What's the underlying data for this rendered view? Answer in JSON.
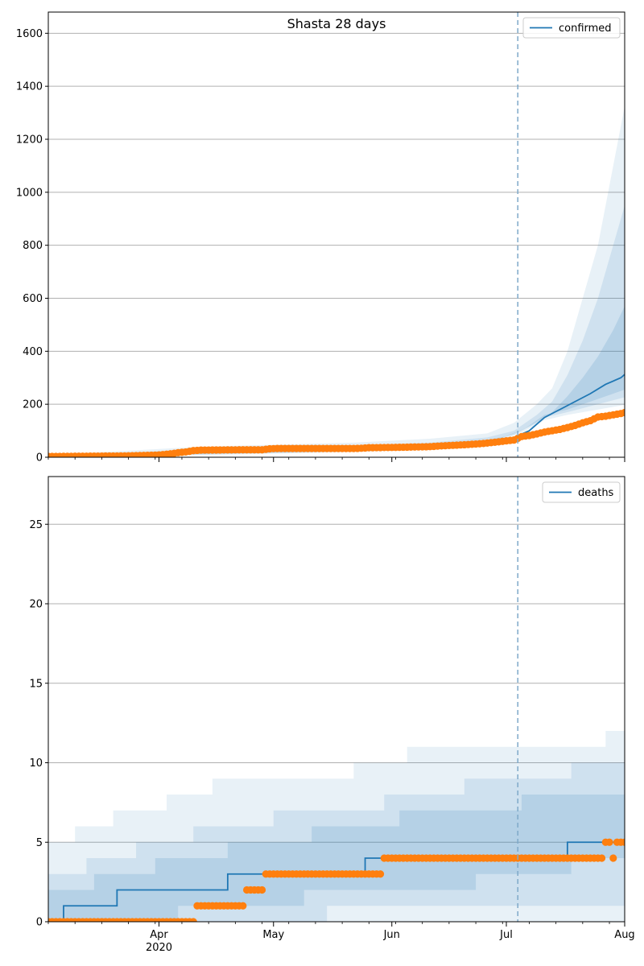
{
  "chart_data": [
    {
      "type": "line",
      "title": "Shasta 28 days",
      "series": [
        {
          "name": "confirmed",
          "color": "#1f77b4"
        }
      ],
      "observed_color": "#ff7f0e",
      "band_color": "#1f77b4",
      "xlim": [
        "2020-03-03",
        "2020-08-01"
      ],
      "ylim": [
        0,
        1680
      ],
      "yticks": [
        0,
        200,
        400,
        600,
        800,
        1000,
        1200,
        1400,
        1600
      ],
      "forecast_start": "2020-07-04",
      "grid": "horizontal",
      "legend_position": "top-right",
      "model_median": [
        [
          0,
          3
        ],
        [
          20,
          10
        ],
        [
          40,
          18
        ],
        [
          60,
          28
        ],
        [
          80,
          33
        ],
        [
          100,
          38
        ],
        [
          110,
          42
        ],
        [
          120,
          62
        ],
        [
          126,
          100
        ],
        [
          130,
          150
        ],
        [
          134,
          180
        ],
        [
          138,
          210
        ],
        [
          142,
          240
        ],
        [
          146,
          275
        ],
        [
          150,
          300
        ],
        [
          154,
          350
        ],
        [
          158,
          390
        ],
        [
          162,
          450
        ],
        [
          166,
          510
        ],
        [
          168,
          560
        ],
        [
          170,
          610
        ],
        [
          172,
          660
        ],
        [
          174,
          730
        ],
        [
          176,
          790
        ],
        [
          178,
          840
        ]
      ],
      "bands": [
        {
          "upper": [
            [
              0,
              8
            ],
            [
              40,
              40
            ],
            [
              80,
              55
            ],
            [
              100,
              70
            ],
            [
              115,
              90
            ],
            [
              122,
              130
            ],
            [
              128,
              200
            ],
            [
              132,
              260
            ],
            [
              136,
              400
            ],
            [
              140,
              600
            ],
            [
              144,
              800
            ],
            [
              148,
              1100
            ],
            [
              152,
              1400
            ],
            [
              156,
              1650
            ],
            [
              160,
              1700
            ],
            [
              178,
              1700
            ]
          ],
          "lower": [
            [
              0,
              0
            ],
            [
              40,
              8
            ],
            [
              80,
              20
            ],
            [
              100,
              28
            ],
            [
              115,
              40
            ],
            [
              125,
              100
            ],
            [
              130,
              140
            ],
            [
              136,
              160
            ],
            [
              144,
              180
            ],
            [
              152,
              200
            ],
            [
              160,
              220
            ],
            [
              170,
              250
            ],
            [
              178,
              280
            ]
          ]
        },
        {
          "upper": [
            [
              0,
              5
            ],
            [
              40,
              30
            ],
            [
              80,
              45
            ],
            [
              100,
              55
            ],
            [
              115,
              75
            ],
            [
              122,
              100
            ],
            [
              128,
              160
            ],
            [
              132,
              210
            ],
            [
              136,
              310
            ],
            [
              140,
              440
            ],
            [
              144,
              600
            ],
            [
              148,
              800
            ],
            [
              152,
              1000
            ],
            [
              156,
              1200
            ],
            [
              160,
              1450
            ],
            [
              166,
              1700
            ],
            [
              178,
              1700
            ]
          ],
          "lower": [
            [
              0,
              0
            ],
            [
              40,
              10
            ],
            [
              80,
              22
            ],
            [
              100,
              30
            ],
            [
              115,
              45
            ],
            [
              125,
              110
            ],
            [
              130,
              150
            ],
            [
              136,
              170
            ],
            [
              144,
              200
            ],
            [
              152,
              230
            ],
            [
              160,
              260
            ],
            [
              170,
              310
            ],
            [
              178,
              350
            ]
          ]
        },
        {
          "upper": [
            [
              0,
              4
            ],
            [
              40,
              25
            ],
            [
              80,
              38
            ],
            [
              100,
              48
            ],
            [
              115,
              65
            ],
            [
              122,
              85
            ],
            [
              128,
              130
            ],
            [
              132,
              170
            ],
            [
              136,
              230
            ],
            [
              140,
              300
            ],
            [
              144,
              380
            ],
            [
              148,
              480
            ],
            [
              152,
              600
            ],
            [
              156,
              720
            ],
            [
              160,
              860
            ],
            [
              166,
              1050
            ],
            [
              172,
              1300
            ],
            [
              178,
              1600
            ]
          ],
          "lower": [
            [
              0,
              1
            ],
            [
              40,
              12
            ],
            [
              80,
              25
            ],
            [
              100,
              32
            ],
            [
              115,
              50
            ],
            [
              125,
              110
            ],
            [
              130,
              160
            ],
            [
              136,
              180
            ],
            [
              144,
              220
            ],
            [
              152,
              260
            ],
            [
              160,
              300
            ],
            [
              168,
              360
            ],
            [
              174,
              420
            ],
            [
              178,
              490
            ]
          ]
        }
      ],
      "observed": [
        [
          0,
          3
        ],
        [
          20,
          5
        ],
        [
          28,
          8
        ],
        [
          30,
          10
        ],
        [
          32,
          13
        ],
        [
          34,
          17
        ],
        [
          36,
          20
        ],
        [
          38,
          25
        ],
        [
          40,
          27
        ],
        [
          50,
          28
        ],
        [
          56,
          28
        ],
        [
          58,
          32
        ],
        [
          60,
          33
        ],
        [
          80,
          33
        ],
        [
          82,
          34
        ],
        [
          84,
          36
        ],
        [
          90,
          37
        ],
        [
          94,
          38
        ],
        [
          100,
          40
        ],
        [
          102,
          42
        ],
        [
          106,
          45
        ],
        [
          110,
          48
        ],
        [
          114,
          52
        ],
        [
          116,
          55
        ],
        [
          118,
          58
        ],
        [
          120,
          62
        ],
        [
          122,
          65
        ],
        [
          124,
          78
        ],
        [
          126,
          82
        ],
        [
          128,
          88
        ],
        [
          130,
          95
        ],
        [
          132,
          100
        ],
        [
          134,
          105
        ],
        [
          136,
          112
        ],
        [
          138,
          120
        ],
        [
          140,
          130
        ],
        [
          142,
          138
        ],
        [
          144,
          152
        ],
        [
          146,
          155
        ],
        [
          148,
          160
        ],
        [
          150,
          165
        ],
        [
          152,
          172
        ],
        [
          154,
          178
        ],
        [
          156,
          180
        ]
      ]
    },
    {
      "type": "line",
      "title": "",
      "series": [
        {
          "name": "deaths",
          "color": "#1f77b4"
        }
      ],
      "observed_color": "#ff7f0e",
      "band_color": "#1f77b4",
      "xlim": [
        "2020-03-03",
        "2020-08-01"
      ],
      "ylim": [
        0,
        28
      ],
      "yticks": [
        0,
        5,
        10,
        15,
        20,
        25
      ],
      "xticks": [
        "Apr",
        "May",
        "Jun",
        "Jul",
        "Aug"
      ],
      "xtick_year": "2020",
      "forecast_start": "2020-07-04",
      "grid": "horizontal",
      "legend_position": "top-right",
      "model_median_steps": [
        [
          0,
          0
        ],
        [
          4,
          1
        ],
        [
          18,
          2
        ],
        [
          47,
          3
        ],
        [
          83,
          4
        ],
        [
          136,
          5
        ],
        [
          155,
          6
        ],
        [
          167,
          7
        ],
        [
          175,
          8
        ],
        [
          185,
          9
        ],
        [
          194,
          10
        ],
        [
          200,
          11
        ],
        [
          203,
          12
        ],
        [
          208,
          13
        ],
        [
          212,
          14
        ]
      ],
      "bands": [
        {
          "upper_steps": [
            [
              0,
              5
            ],
            [
              7,
              6
            ],
            [
              17,
              7
            ],
            [
              31,
              8
            ],
            [
              43,
              9
            ],
            [
              80,
              10
            ],
            [
              94,
              11
            ],
            [
              146,
              12
            ],
            [
              170,
              13
            ],
            [
              175,
              14
            ],
            [
              178,
              15
            ],
            [
              181,
              16
            ],
            [
              184,
              17
            ],
            [
              187,
              18
            ],
            [
              190,
              19
            ],
            [
              193,
              20
            ],
            [
              196,
              22
            ],
            [
              199,
              24
            ],
            [
              202,
              26
            ],
            [
              205,
              27
            ],
            [
              208,
              28
            ]
          ],
          "lower_steps": [
            [
              0,
              0
            ],
            [
              166,
              0
            ],
            [
              183,
              5
            ],
            [
              193,
              6
            ],
            [
              203,
              7
            ]
          ]
        },
        {
          "upper_steps": [
            [
              0,
              3
            ],
            [
              10,
              4
            ],
            [
              23,
              5
            ],
            [
              38,
              6
            ],
            [
              59,
              7
            ],
            [
              88,
              8
            ],
            [
              109,
              9
            ],
            [
              137,
              10
            ],
            [
              168,
              9
            ],
            [
              175,
              10
            ],
            [
              181,
              11
            ],
            [
              187,
              12
            ],
            [
              191,
              14
            ],
            [
              195,
              16
            ],
            [
              200,
              18
            ],
            [
              205,
              20
            ],
            [
              208,
              22
            ],
            [
              212,
              24
            ]
          ],
          "lower_steps": [
            [
              0,
              0
            ],
            [
              20,
              0
            ],
            [
              73,
              1
            ],
            [
              117,
              1
            ],
            [
              120,
              1
            ],
            [
              166,
              1
            ],
            [
              170,
              5
            ],
            [
              185,
              6
            ],
            [
              193,
              7
            ],
            [
              203,
              8
            ]
          ]
        },
        {
          "upper_steps": [
            [
              0,
              2
            ],
            [
              12,
              3
            ],
            [
              28,
              4
            ],
            [
              47,
              5
            ],
            [
              69,
              6
            ],
            [
              92,
              7
            ],
            [
              124,
              8
            ],
            [
              170,
              7
            ],
            [
              180,
              8
            ],
            [
              186,
              9
            ],
            [
              191,
              10
            ],
            [
              196,
              11
            ],
            [
              200,
              12
            ],
            [
              204,
              13
            ],
            [
              208,
              15
            ],
            [
              212,
              16
            ]
          ],
          "lower_steps": [
            [
              0,
              0
            ],
            [
              34,
              1
            ],
            [
              67,
              2
            ],
            [
              112,
              3
            ],
            [
              137,
              4
            ],
            [
              166,
              4
            ],
            [
              176,
              5
            ],
            [
              192,
              6
            ],
            [
              200,
              7
            ],
            [
              206,
              8
            ],
            [
              212,
              9
            ]
          ]
        }
      ],
      "observed_steps": [
        [
          0,
          0
        ],
        [
          38,
          0
        ],
        [
          39,
          1
        ],
        [
          51,
          1
        ],
        [
          52,
          2
        ],
        [
          56,
          2
        ],
        [
          57,
          3
        ],
        [
          87,
          3
        ],
        [
          88,
          4
        ],
        [
          144,
          4
        ],
        [
          146,
          5
        ],
        [
          148,
          4
        ],
        [
          149,
          5
        ],
        [
          153,
          5
        ],
        [
          154,
          6
        ],
        [
          156,
          6
        ]
      ]
    }
  ]
}
